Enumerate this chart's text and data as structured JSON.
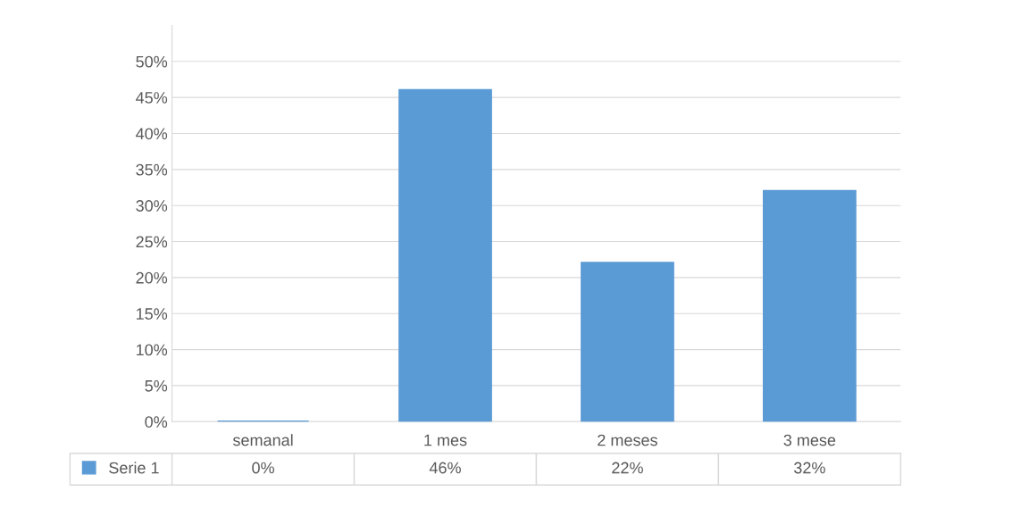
{
  "chart_data": {
    "type": "bar",
    "categories": [
      "semanal",
      "1 mes",
      "2 meses",
      "3 mese"
    ],
    "series": [
      {
        "name": "Serie 1",
        "color": "#5b9bd5",
        "values": [
          0,
          46,
          22,
          32
        ],
        "value_labels": [
          "0%",
          "46%",
          "22%",
          "32%"
        ]
      }
    ],
    "ylim": [
      0,
      55
    ],
    "yticks": [
      {
        "value": 0,
        "label": "0%"
      },
      {
        "value": 5,
        "label": "5%"
      },
      {
        "value": 10,
        "label": "10%"
      },
      {
        "value": 15,
        "label": "15%"
      },
      {
        "value": 20,
        "label": "20%"
      },
      {
        "value": 25,
        "label": "25%"
      },
      {
        "value": 30,
        "label": "30%"
      },
      {
        "value": 35,
        "label": "35%"
      },
      {
        "value": 40,
        "label": "40%"
      },
      {
        "value": 45,
        "label": "45%"
      },
      {
        "value": 50,
        "label": "50%"
      }
    ],
    "grid": "y",
    "legend": "bottom left"
  }
}
